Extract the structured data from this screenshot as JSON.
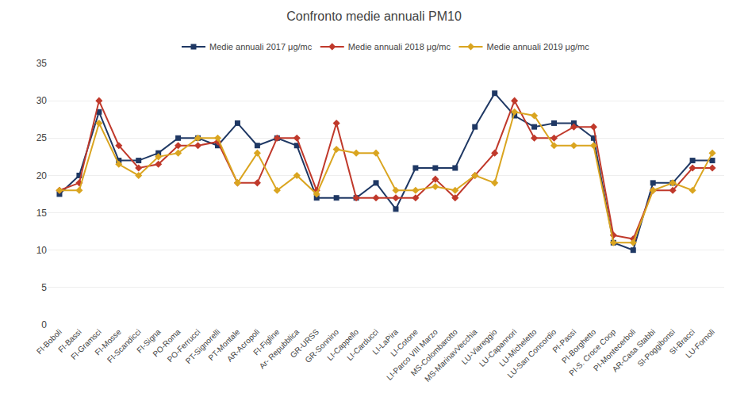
{
  "chart_data": {
    "type": "line",
    "title": "Confronto medie annuali PM10",
    "categories": [
      "FI-Boboli",
      "FI-Bassi",
      "FI-Gramsci",
      "FI-Mosse",
      "FI-Scandicci",
      "FI-Signa",
      "PO-Roma",
      "PO-Ferrucci",
      "PT-Signorelli",
      "PT-Montale",
      "AR-Acropoli",
      "FI-Figline",
      "Ar- Repubblica",
      "GR-URSS",
      "GR-Sonnino",
      "LI-Cappello",
      "LI-Carducci",
      "LI-LaPira",
      "LI-Cotone",
      "LI-Parco VIII Marzo",
      "MS-Colombarotto",
      "MS-MarinavVecchia",
      "LU-Viareggio",
      "LU-Capannori",
      "LU-Micheletto",
      "LU-San Concordio",
      "PI-Passi",
      "PI-Borghetto",
      "PI-S. Croce Coop",
      "PI-Montecerboli",
      "AR-Casa Stabbi",
      "SI-Poggibonsi",
      "SI-Bracci",
      "LU-Fornoli"
    ],
    "series": [
      {
        "name": "Medie annuali 2017 μg/mc",
        "color": "#1F3864",
        "marker": "square",
        "values": [
          17.5,
          20.0,
          28.5,
          22.0,
          22.0,
          23.0,
          25.0,
          25.0,
          24.0,
          27.0,
          24.0,
          25.0,
          24.0,
          17.0,
          17.0,
          17.0,
          19.0,
          15.5,
          21.0,
          21.0,
          21.0,
          26.5,
          31.0,
          28.0,
          26.5,
          27.0,
          27.0,
          25.0,
          11.0,
          10.0,
          19.0,
          19.0,
          22.0,
          22.0
        ]
      },
      {
        "name": "Medie annuali 2018 μg/mc",
        "color": "#C0392B",
        "marker": "diamond",
        "values": [
          18.0,
          19.0,
          30.0,
          24.0,
          21.0,
          21.5,
          24.0,
          24.0,
          24.5,
          19.0,
          19.0,
          25.0,
          25.0,
          18.0,
          27.0,
          17.0,
          17.0,
          17.0,
          17.0,
          19.5,
          17.0,
          20.0,
          23.0,
          30.0,
          25.0,
          25.0,
          26.5,
          26.5,
          12.0,
          11.5,
          18.0,
          18.0,
          21.0,
          21.0
        ]
      },
      {
        "name": "Medie annuali 2019 μg/mc",
        "color": "#DAA520",
        "marker": "diamond",
        "values": [
          18.0,
          18.0,
          27.0,
          21.5,
          20.0,
          22.5,
          23.0,
          25.0,
          25.0,
          19.0,
          23.0,
          18.0,
          20.0,
          17.5,
          23.5,
          23.0,
          23.0,
          18.0,
          18.0,
          18.5,
          18.0,
          20.0,
          19.0,
          28.5,
          28.0,
          24.0,
          24.0,
          24.0,
          11.0,
          11.0,
          18.0,
          19.0,
          18.0,
          23.0
        ]
      }
    ],
    "ylim": [
      0,
      35
    ],
    "yticks": [
      0,
      5,
      10,
      15,
      20,
      25,
      30,
      35
    ],
    "grid": true,
    "legend": "top"
  }
}
